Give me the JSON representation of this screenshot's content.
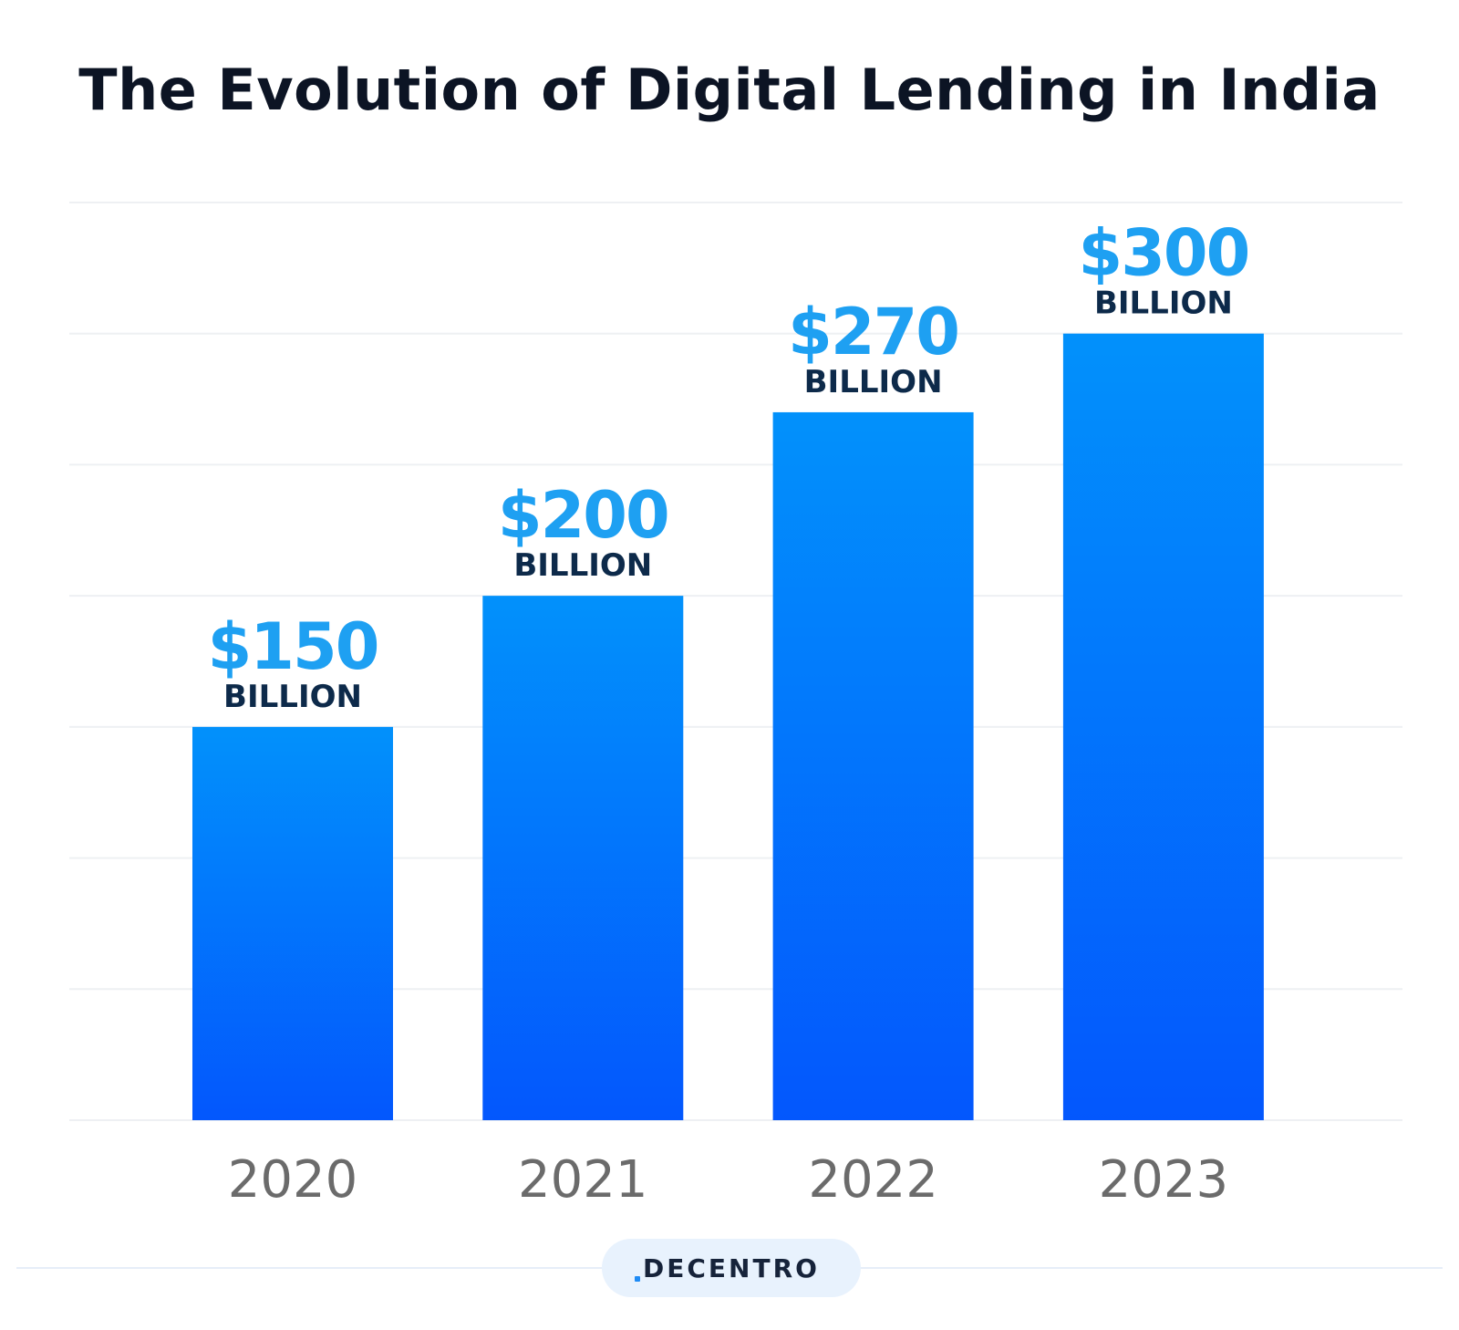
{
  "chart_data": {
    "type": "bar",
    "title": "The Evolution of Digital Lending in India",
    "categories": [
      "2020",
      "2021",
      "2022",
      "2023"
    ],
    "values": [
      150,
      200,
      270,
      300
    ],
    "value_labels": [
      "$150",
      "$200",
      "$270",
      "$300"
    ],
    "unit_label": "BILLION",
    "ylim": [
      0,
      350
    ],
    "grid": true,
    "xlabel": "",
    "ylabel": "",
    "colors": {
      "bar_top": "#0291fb",
      "bar_bottom": "#0357fd",
      "value_label": "#1ea0f2",
      "unit_label": "#0d2a4a",
      "tick_label": "#6b6b6b",
      "grid": "#eef0f3"
    }
  },
  "brand": {
    "logo_text": "DECENTRO"
  }
}
